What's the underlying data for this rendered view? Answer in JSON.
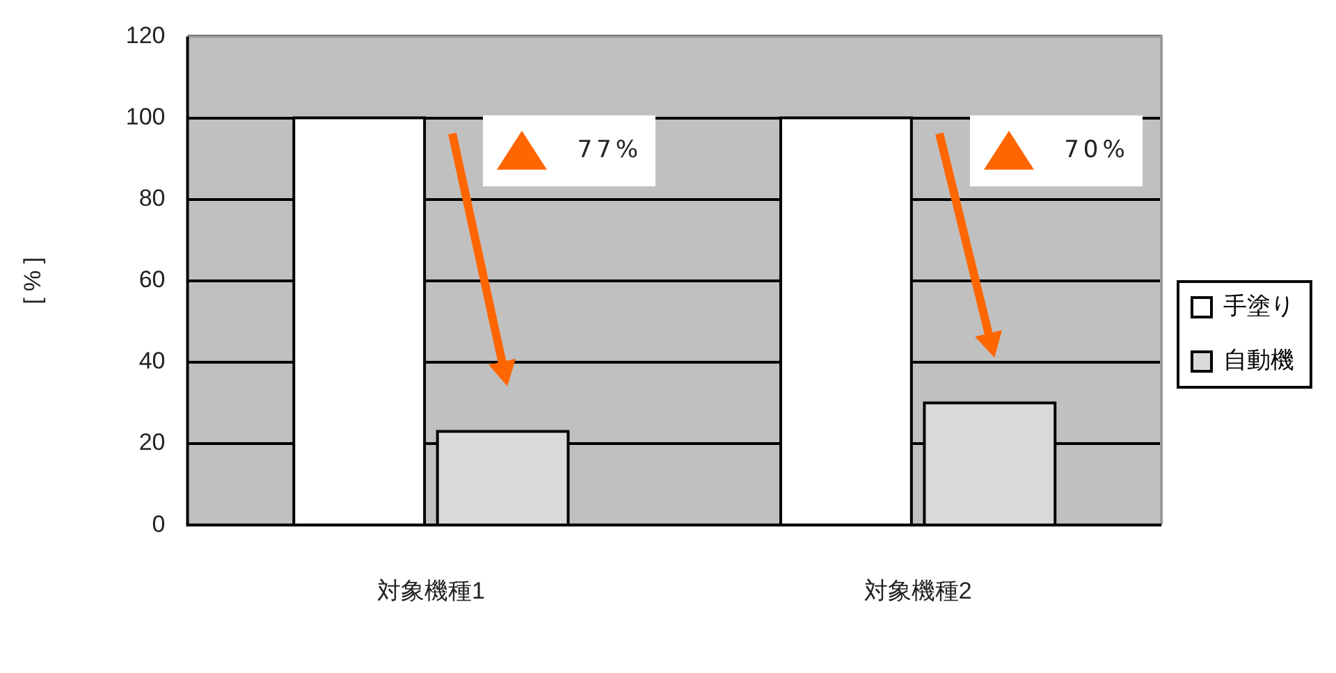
{
  "chart_data": {
    "type": "bar",
    "ylabel": "[ % ]",
    "categories": [
      "対象機種1",
      "対象機種2"
    ],
    "series": [
      {
        "name": "手塗り",
        "color": "#ffffff",
        "values": [
          100,
          100
        ]
      },
      {
        "name": "自動機",
        "color": "#d9d9d9",
        "values": [
          23,
          30
        ]
      }
    ],
    "ylim": [
      0,
      120
    ],
    "yticks": [
      0,
      20,
      40,
      60,
      80,
      100,
      120
    ],
    "grid": "y",
    "legend": "right",
    "annotations": [
      "77%",
      "70%"
    ]
  }
}
